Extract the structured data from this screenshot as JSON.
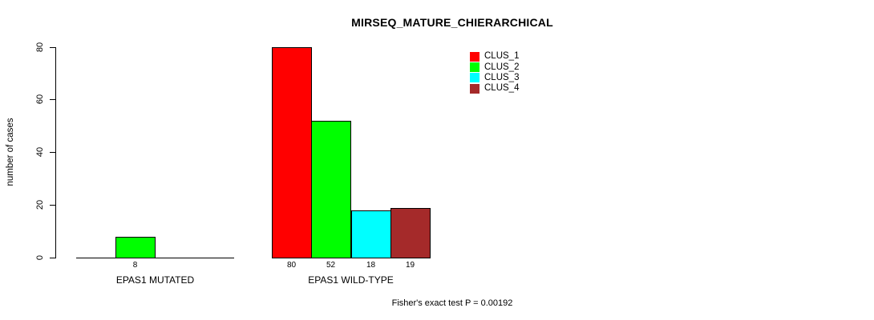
{
  "page": {
    "background_color": "#FFFFFF",
    "text_color": "#000000"
  },
  "chart_data": {
    "type": "bar",
    "title": "MIRSEQ_MATURE_CHIERARCHICAL",
    "xlabel": "",
    "ylabel": "number of cases",
    "ylim": [
      0,
      80
    ],
    "yticks": [
      0,
      20,
      40,
      60,
      80
    ],
    "grid": false,
    "grouped": true,
    "categories": [
      "EPAS1 MUTATED",
      "EPAS1 WILD-TYPE"
    ],
    "series": [
      {
        "name": "CLUS_1",
        "color": "#FF0000",
        "values": [
          0,
          80
        ]
      },
      {
        "name": "CLUS_2",
        "color": "#00FF00",
        "values": [
          8,
          52
        ]
      },
      {
        "name": "CLUS_3",
        "color": "#00FFFF",
        "values": [
          0,
          18
        ]
      },
      {
        "name": "CLUS_4",
        "color": "#A52A2A",
        "values": [
          0,
          19
        ]
      }
    ],
    "bar_value_labels_shown": [
      {
        "category": "EPAS1 MUTATED",
        "labels": [
          "8"
        ]
      },
      {
        "category": "EPAS1 WILD-TYPE",
        "labels": [
          "80",
          "52",
          "18",
          "19"
        ]
      }
    ],
    "legend": {
      "position": "inside-top-center",
      "entries": [
        "CLUS_1",
        "CLUS_2",
        "CLUS_3",
        "CLUS_4"
      ]
    },
    "annotation": "Fisher's exact test P = 0.00192"
  }
}
